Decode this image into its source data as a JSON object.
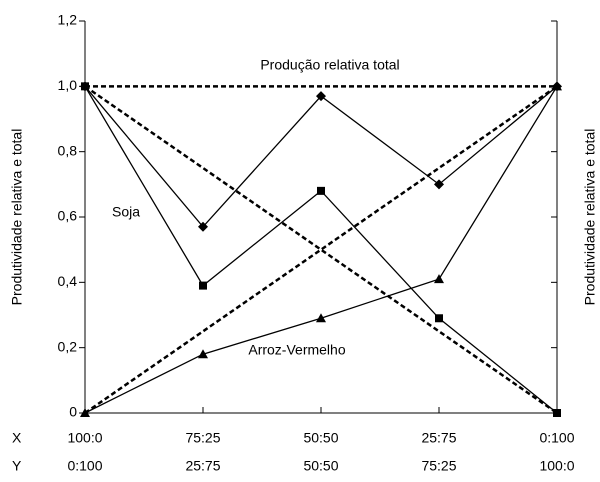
{
  "chart_data": {
    "type": "line",
    "y_label": "Produtividade relativa e total",
    "y2_label": "Produtividade relativa e total",
    "category_rows": [
      {
        "name": "X",
        "labels": [
          "100:0",
          "75:25",
          "50:50",
          "25:75",
          "0:100"
        ]
      },
      {
        "name": "Y",
        "labels": [
          "0:100",
          "25:75",
          "50:50",
          "75:25",
          "100:0"
        ]
      }
    ],
    "ylim": [
      0,
      1.2
    ],
    "yticks": [
      0,
      {
        "value": 0.2,
        "label": "0,2"
      },
      {
        "value": 0.4,
        "label": "0,4"
      },
      {
        "value": 0.6,
        "label": "0,6"
      },
      {
        "value": 0.8,
        "label": "0,8"
      },
      {
        "value": 1,
        "label": "1,0"
      },
      {
        "value": 1.2,
        "label": "1,2"
      }
    ],
    "series": [
      {
        "color": "#000000",
        "dashed": true,
        "values": [
          1,
          1,
          1,
          1,
          1
        ]
      },
      {
        "color": "#000000",
        "dashed": true,
        "values": [
          1,
          0.75,
          0.5,
          0.25,
          0
        ]
      },
      {
        "color": "#000000",
        "dashed": true,
        "values": [
          0,
          0.25,
          0.5,
          0.75,
          1
        ]
      },
      {
        "name": "Produção relativa total",
        "color": "#000000",
        "marker": "diamond",
        "values": [
          1,
          0.57,
          0.97,
          0.7,
          1
        ]
      },
      {
        "name": "Soja",
        "color": "#000000",
        "marker": "square",
        "values": [
          1,
          0.39,
          0.68,
          0.29,
          0
        ]
      },
      {
        "name": "Arroz-Vermelho",
        "color": "#000000",
        "marker": "triangle",
        "values": [
          0,
          0.18,
          0.29,
          0.41,
          1
        ]
      }
    ]
  }
}
